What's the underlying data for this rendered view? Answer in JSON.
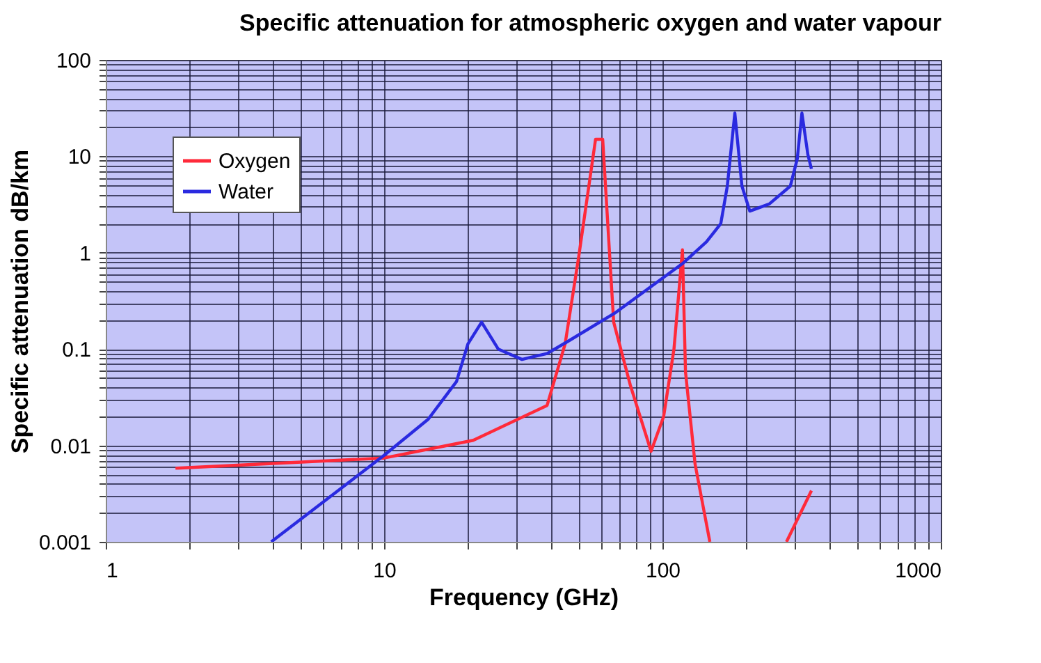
{
  "chart_data": {
    "type": "line",
    "title": "Specific attenuation for atmospheric oxygen and water vapour",
    "xlabel": "Frequency (GHz)",
    "ylabel": "Specific attenuation dB/km",
    "log": "xy",
    "grid": true,
    "legend": "top left",
    "line_style": "solid",
    "marker": "none",
    "xlim": [
      1,
      1000
    ],
    "ylim": [
      0.001,
      100
    ],
    "xticks": [
      1,
      {
        "value": 2,
        "label": null
      },
      {
        "value": 3,
        "label": null
      },
      {
        "value": 4,
        "label": null
      },
      {
        "value": 5,
        "label": null
      },
      {
        "value": 6,
        "label": null
      },
      {
        "value": 7,
        "label": null
      },
      {
        "value": 8,
        "label": null
      },
      {
        "value": 9,
        "label": null
      },
      10,
      {
        "value": 20,
        "label": null
      },
      {
        "value": 30,
        "label": null
      },
      {
        "value": 40,
        "label": null
      },
      {
        "value": 50,
        "label": null
      },
      {
        "value": 60,
        "label": null
      },
      {
        "value": 70,
        "label": null
      },
      {
        "value": 80,
        "label": null
      },
      {
        "value": 90,
        "label": null
      },
      100,
      {
        "value": 200,
        "label": null
      },
      {
        "value": 300,
        "label": null
      },
      {
        "value": 400,
        "label": null
      },
      {
        "value": 500,
        "label": null
      },
      {
        "value": 600,
        "label": null
      },
      {
        "value": 700,
        "label": null
      },
      {
        "value": 800,
        "label": null
      },
      {
        "value": 900,
        "label": null
      },
      1000
    ],
    "yticks": [
      0.001,
      {
        "value": 0.002,
        "label": null
      },
      {
        "value": 0.003,
        "label": null
      },
      {
        "value": 0.004,
        "label": null
      },
      {
        "value": 0.005,
        "label": null
      },
      {
        "value": 0.006,
        "label": null
      },
      {
        "value": 0.007,
        "label": null
      },
      {
        "value": 0.008,
        "label": null
      },
      {
        "value": 0.009,
        "label": null
      },
      0.01,
      {
        "value": 0.02,
        "label": null
      },
      {
        "value": 0.03,
        "label": null
      },
      {
        "value": 0.04,
        "label": null
      },
      {
        "value": 0.05,
        "label": null
      },
      {
        "value": 0.06,
        "label": null
      },
      {
        "value": 0.07,
        "label": null
      },
      {
        "value": 0.08,
        "label": null
      },
      {
        "value": 0.09,
        "label": null
      },
      0.1,
      {
        "value": 0.2,
        "label": null
      },
      {
        "value": 0.3,
        "label": null
      },
      {
        "value": 0.4,
        "label": null
      },
      {
        "value": 0.5,
        "label": null
      },
      {
        "value": 0.6,
        "label": null
      },
      {
        "value": 0.7,
        "label": null
      },
      {
        "value": 0.8,
        "label": null
      },
      {
        "value": 0.9,
        "label": null
      },
      1,
      {
        "value": 2,
        "label": null
      },
      {
        "value": 3,
        "label": null
      },
      {
        "value": 4,
        "label": null
      },
      {
        "value": 5,
        "label": null
      },
      {
        "value": 6,
        "label": null
      },
      {
        "value": 7,
        "label": null
      },
      {
        "value": 8,
        "label": null
      },
      {
        "value": 9,
        "label": null
      },
      10,
      {
        "value": 20,
        "label": null
      },
      {
        "value": 30,
        "label": null
      },
      {
        "value": 40,
        "label": null
      },
      {
        "value": 50,
        "label": null
      },
      {
        "value": 60,
        "label": null
      },
      {
        "value": 70,
        "label": null
      },
      {
        "value": 80,
        "label": null
      },
      {
        "value": 90,
        "label": null
      },
      100
    ],
    "series": [
      {
        "name": "Oxygen",
        "color": "#ff2a3a",
        "x": [
          1.78,
          10,
          20.9,
          38.5,
          44.7,
          50,
          57.5,
          61,
          66.8,
          76.7,
          91,
          101,
          110,
          118,
          121,
          131,
          148,
          null,
          279,
          343
        ],
        "values": [
          0.0058,
          0.0074,
          0.0113,
          0.026,
          0.113,
          0.9,
          15,
          15,
          0.19,
          0.042,
          0.0087,
          0.02,
          0.1,
          1.07,
          0.058,
          0.0064,
          0.001,
          null,
          0.001,
          0.0034
        ]
      },
      {
        "name": "Water",
        "color": "#2a2ae0",
        "x": [
          3.93,
          10,
          14.4,
          18.2,
          20,
          22.4,
          25.7,
          31.3,
          38.5,
          45.7,
          68,
          118,
          144,
          162,
          171,
          182,
          193,
          206,
          242,
          288,
          305,
          317,
          333,
          343
        ],
        "values": [
          0.001,
          0.0079,
          0.0187,
          0.046,
          0.113,
          0.19,
          0.1,
          0.078,
          0.09,
          0.12,
          0.24,
          0.77,
          1.3,
          2.0,
          4.9,
          28,
          4.9,
          2.7,
          3.2,
          4.9,
          9.4,
          28,
          10.4,
          7.4
        ]
      }
    ]
  }
}
